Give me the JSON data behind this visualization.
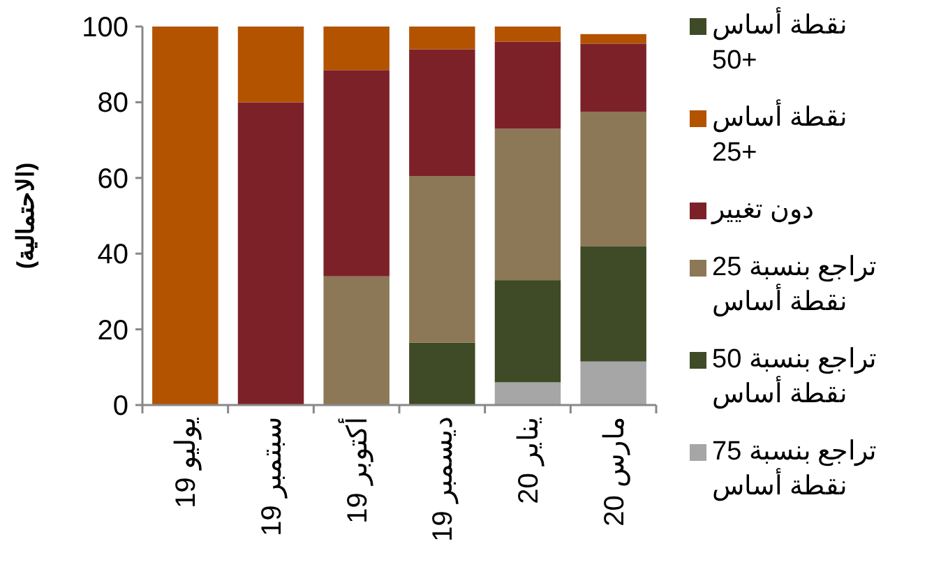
{
  "chart_data": {
    "type": "bar",
    "stacked": true,
    "ylabel": "(الاحتمالية)",
    "categories": [
      "يوليو 19",
      "سبتمبر 19",
      "أكتوبر 19",
      "ديسمبر 19",
      "يناير 20",
      "مارس 20"
    ],
    "ylim": [
      0,
      100
    ],
    "yticks": [
      0,
      20,
      40,
      60,
      80,
      100
    ],
    "grid": false,
    "legend": "right",
    "series": [
      {
        "name": "تراجع بنسبة 75 نقطة أساس",
        "color": "#a6a6a6",
        "values": [
          0,
          0,
          0,
          0,
          6,
          11.5
        ]
      },
      {
        "name": "تراجع بنسبة 50 نقطة أساس",
        "color": "#3f4a26",
        "values": [
          0,
          0,
          0,
          16.5,
          27,
          30.5
        ]
      },
      {
        "name": "تراجع بنسبة 25 نقطة أساس",
        "color": "#8c7856",
        "values": [
          0,
          0,
          34,
          44,
          40,
          35.5
        ]
      },
      {
        "name": "دون تغيير",
        "color": "#7d2129",
        "values": [
          0,
          80,
          54.5,
          33.5,
          23,
          18
        ]
      },
      {
        "name": "نقطة أساس +25",
        "color": "#b35300",
        "values": [
          100,
          20,
          11.5,
          6,
          4,
          2.5
        ]
      },
      {
        "name": "نقطة أساس +50",
        "color": "#3f4a26",
        "values": [
          0,
          0,
          0,
          0,
          0,
          0
        ]
      }
    ]
  }
}
